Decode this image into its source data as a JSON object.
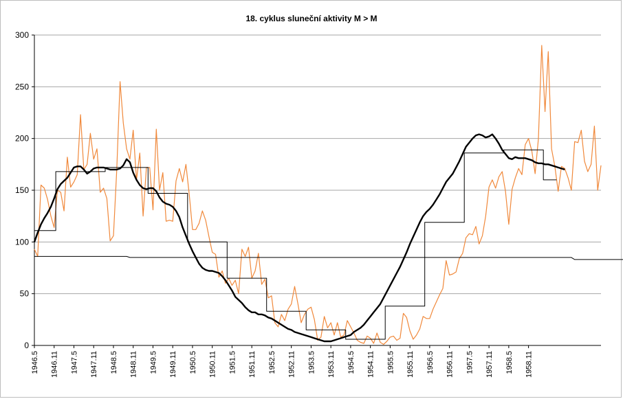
{
  "chart_data": {
    "type": "line",
    "title": "18. cyklus sluneční aktivity  M > M",
    "xlabel": "",
    "ylabel": "",
    "ylim": [
      0,
      300
    ],
    "yticks": [
      0,
      50,
      100,
      150,
      200,
      250,
      300
    ],
    "grid": "horizontal",
    "x_start": "1946.5",
    "x_ticks": [
      "1946.5",
      "1946.11",
      "1947.5",
      "1947.11",
      "1948.5",
      "1948.11",
      "1949.5",
      "1949.11",
      "1950.5",
      "1950.11",
      "1951.5",
      "1951.11",
      "1952.5",
      "1952.11",
      "1953.5",
      "1953.11",
      "1954.5",
      "1954.11",
      "1955.5",
      "1955.11",
      "1956.5",
      "1956.11",
      "1957.5",
      "1957.11",
      "1958.5",
      "1958.11"
    ],
    "colors": {
      "monthly": "#f0883a",
      "smoothed": "#000000",
      "step": "#000000",
      "grid": "#a6a6a6"
    },
    "series": [
      {
        "style": "monthly",
        "values": [
          93,
          86,
          155,
          152,
          141,
          125,
          114,
          150,
          148,
          130,
          182,
          153,
          158,
          165,
          223,
          170,
          175,
          205,
          180,
          190,
          148,
          152,
          142,
          101,
          106,
          170,
          255,
          215,
          190,
          180,
          208,
          160,
          186,
          125,
          172,
          172,
          131,
          209,
          150,
          167,
          120,
          121,
          120,
          159,
          171,
          158,
          175,
          146,
          112,
          112,
          118,
          130,
          121,
          105,
          90,
          88,
          66,
          72,
          60,
          65,
          58,
          63,
          50,
          93,
          86,
          95,
          65,
          72,
          89,
          59,
          64,
          46,
          48,
          22,
          18,
          30,
          24,
          35,
          40,
          57,
          40,
          22,
          30,
          35,
          37,
          25,
          5,
          8,
          28,
          17,
          22,
          10,
          22,
          8,
          10,
          24,
          18,
          12,
          5,
          3,
          2,
          9,
          7,
          2,
          12,
          3,
          1,
          4,
          8,
          9,
          5,
          7,
          31,
          27,
          14,
          6,
          10,
          16,
          28,
          26,
          26,
          35,
          42,
          49,
          55,
          82,
          68,
          69,
          71,
          84,
          89,
          104,
          108,
          107,
          115,
          98,
          106,
          125,
          153,
          160,
          152,
          163,
          168,
          149,
          117,
          151,
          162,
          171,
          165,
          194,
          200,
          188,
          166,
          200,
          290,
          226,
          284,
          190,
          173,
          149,
          173,
          171,
          162,
          150,
          197,
          196,
          208,
          178,
          168,
          175,
          212,
          150,
          174
        ]
      },
      {
        "style": "smoothed",
        "values": [
          100,
          109,
          117,
          123,
          128,
          134,
          142,
          151,
          156,
          159,
          162,
          167,
          172,
          173,
          173,
          170,
          166,
          168,
          171,
          172,
          172,
          172,
          171,
          170,
          170,
          170,
          171,
          174,
          180,
          177,
          167,
          160,
          155,
          152,
          151,
          152,
          152,
          149,
          143,
          139,
          137,
          136,
          134,
          130,
          124,
          114,
          106,
          98,
          91,
          85,
          79,
          75,
          73,
          72,
          72,
          71,
          70,
          67,
          63,
          58,
          53,
          47,
          44,
          41,
          37,
          34,
          32,
          32,
          30,
          30,
          29,
          27,
          26,
          24,
          22,
          20,
          18,
          16,
          15,
          13,
          12,
          11,
          10,
          9,
          8,
          7,
          6,
          5,
          4,
          4,
          4,
          5,
          6,
          7,
          8,
          9,
          10,
          13,
          15,
          17,
          20,
          24,
          28,
          32,
          36,
          40,
          46,
          52,
          58,
          64,
          70,
          76,
          83,
          90,
          98,
          105,
          112,
          119,
          125,
          129,
          132,
          136,
          141,
          146,
          152,
          158,
          162,
          166,
          172,
          178,
          185,
          192,
          196,
          200,
          203,
          204,
          203,
          201,
          202,
          204,
          200,
          195,
          189,
          185,
          181,
          180,
          182,
          181,
          181,
          181,
          180,
          179,
          177,
          176,
          176,
          175,
          175,
          174,
          173,
          172,
          171,
          170
        ]
      },
      {
        "style": "step",
        "values": [
          111,
          111,
          111,
          111,
          111,
          111,
          111,
          168,
          168,
          168,
          168,
          168,
          168,
          168,
          168,
          168,
          168,
          168,
          168,
          168,
          168,
          168,
          172,
          172,
          172,
          172,
          172,
          172,
          172,
          172,
          172,
          172,
          172,
          172,
          172,
          147,
          147,
          147,
          147,
          147,
          147,
          147,
          147,
          147,
          147,
          147,
          147,
          100,
          100,
          100,
          100,
          100,
          100,
          100,
          100,
          100,
          100,
          100,
          100,
          65,
          65,
          65,
          65,
          65,
          65,
          65,
          65,
          65,
          65,
          65,
          65,
          33,
          33,
          33,
          33,
          33,
          33,
          33,
          33,
          33,
          33,
          33,
          33,
          15,
          15,
          15,
          15,
          15,
          15,
          15,
          15,
          15,
          15,
          15,
          15,
          6,
          6,
          6,
          6,
          6,
          6,
          6,
          6,
          6,
          6,
          6,
          6,
          38,
          38,
          38,
          38,
          38,
          38,
          38,
          38,
          38,
          38,
          38,
          38,
          119,
          119,
          119,
          119,
          119,
          119,
          119,
          119,
          119,
          119,
          119,
          119,
          186,
          186,
          186,
          186,
          186,
          186,
          186,
          186,
          186,
          186,
          186,
          186,
          189,
          189,
          189,
          189,
          189,
          189,
          189,
          189,
          189,
          189,
          189,
          189,
          160,
          160,
          160,
          160
        ]
      },
      {
        "style": "flat",
        "values": [
          86,
          86,
          86,
          86,
          86,
          86,
          86,
          86,
          86,
          86,
          86,
          86,
          86,
          86,
          86,
          86,
          86,
          86,
          86,
          86,
          86,
          86,
          86,
          86,
          86,
          86,
          86,
          86,
          86,
          85,
          85,
          85,
          85,
          85,
          85,
          85,
          85,
          85,
          85,
          85,
          85,
          85,
          85,
          85,
          85,
          85,
          85,
          85,
          85,
          85,
          85,
          85,
          85,
          85,
          85,
          85,
          85,
          85,
          85,
          85,
          85,
          85,
          85,
          85,
          85,
          85,
          85,
          85,
          85,
          85,
          85,
          85,
          85,
          85,
          85,
          85,
          85,
          85,
          85,
          85,
          85,
          85,
          85,
          85,
          85,
          85,
          85,
          85,
          85,
          85,
          85,
          85,
          85,
          85,
          85,
          85,
          85,
          85,
          85,
          85,
          85,
          85,
          85,
          85,
          85,
          85,
          85,
          85,
          85,
          85,
          85,
          85,
          85,
          85,
          85,
          85,
          85,
          85,
          85,
          85,
          85,
          85,
          85,
          85,
          85,
          85,
          85,
          85,
          85,
          85,
          85,
          85,
          85,
          85,
          85,
          85,
          85,
          85,
          85,
          85,
          85,
          85,
          85,
          85,
          85,
          85,
          85,
          85,
          85,
          85,
          85,
          85,
          85,
          85,
          85,
          85,
          85,
          85,
          85,
          85,
          85,
          85,
          85,
          85,
          83,
          83,
          83,
          83,
          83,
          83,
          83,
          83,
          83,
          83,
          83,
          83,
          83,
          83,
          83,
          83
        ]
      }
    ]
  }
}
